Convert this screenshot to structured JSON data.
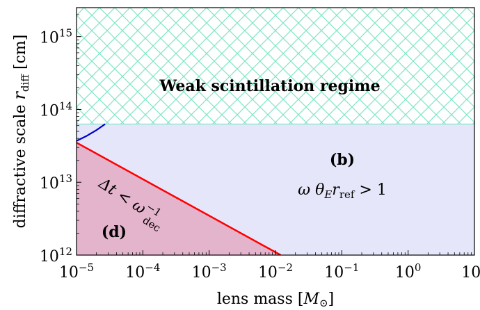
{
  "chart_data": {
    "type": "area",
    "xlabel": "lens mass [M⊙]",
    "ylabel": "diffractive scale r_diff [cm]",
    "xscale": "log",
    "yscale": "log",
    "xlim": [
      1e-05,
      10
    ],
    "ylim": [
      1000000000000.0,
      2500000000000000.0
    ],
    "x_ticks": [
      {
        "value": 1e-05,
        "base": "10",
        "exp": "−5"
      },
      {
        "value": 0.0001,
        "base": "10",
        "exp": "−4"
      },
      {
        "value": 0.001,
        "base": "10",
        "exp": "−3"
      },
      {
        "value": 0.01,
        "base": "10",
        "exp": "−2"
      },
      {
        "value": 0.1,
        "base": "10",
        "exp": "−1"
      },
      {
        "value": 1,
        "base": "10",
        "exp": "0"
      },
      {
        "value": 10,
        "base": "10",
        "exp": "1"
      }
    ],
    "y_ticks": [
      {
        "value": 1000000000000.0,
        "base": "10",
        "exp": "12"
      },
      {
        "value": 10000000000000.0,
        "base": "10",
        "exp": "13"
      },
      {
        "value": 100000000000000.0,
        "base": "10",
        "exp": "14"
      },
      {
        "value": 1000000000000000.0,
        "base": "10",
        "exp": "15"
      }
    ],
    "grid": false,
    "regions": [
      {
        "id": "b",
        "fill": "#e6e6fa"
      },
      {
        "id": "d",
        "fill": "#e4b4cc"
      },
      {
        "id": "weak",
        "fill": "#ffffff",
        "hatch": "#7fe5c8"
      }
    ],
    "weak_boundary_y": 63000000000000.0,
    "red_line": {
      "color": "#ff0000",
      "x": [
        1e-05,
        0.012
      ],
      "y": [
        35000000000000.0,
        1000000000000.0
      ]
    },
    "blue_line": {
      "color": "#0000cc",
      "x": [
        1e-05,
        1.4e-05,
        2e-05,
        2.7e-05
      ],
      "y": [
        37000000000000.0,
        43000000000000.0,
        52000000000000.0,
        63000000000000.0
      ]
    },
    "annotations": {
      "weak": "Weak scintillation regime",
      "b_label": "(b)",
      "b_condition": "ω θE rref > 1",
      "d_label": "(d)",
      "d_condition": "Δt < ω_dec^−1"
    }
  }
}
